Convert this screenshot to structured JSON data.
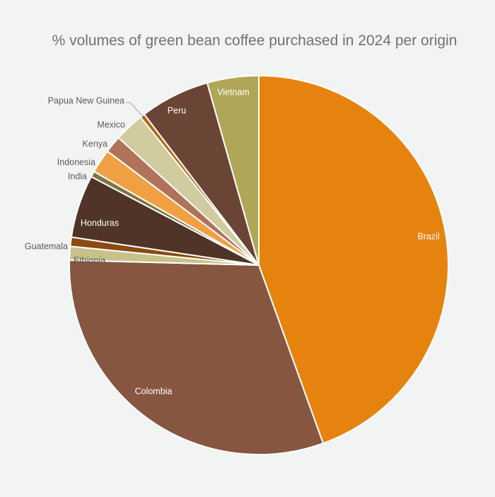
{
  "chart_data": {
    "type": "pie",
    "title": "% volumes of green bean coffee purchased in 2024 per origin",
    "start_angle_deg": 0,
    "direction": "clockwise",
    "slices": [
      {
        "label": "Brazil",
        "value": 45.6,
        "color": "#e6830f",
        "label_color": "#ffffff"
      },
      {
        "label": "Colombia",
        "value": 31.7,
        "color": "#865641",
        "label_color": "#ffffff"
      },
      {
        "label": "Ethiopia",
        "value": 1.2,
        "color": "#c9c18a",
        "label_color": "#5a5a5a"
      },
      {
        "label": "Guatemala",
        "value": 0.8,
        "color": "#8b4a10",
        "label_color": "#5a5a5a"
      },
      {
        "label": "Honduras",
        "value": 5.5,
        "color": "#4f3427",
        "label_color": "#ffffff"
      },
      {
        "label": "India",
        "value": 0.5,
        "color": "#7d7540",
        "label_color": "#5a5a5a"
      },
      {
        "label": "Indonesia",
        "value": 2.1,
        "color": "#f0a043",
        "label_color": "#5a5a5a"
      },
      {
        "label": "Kenya",
        "value": 1.5,
        "color": "#b0735a",
        "label_color": "#5a5a5a"
      },
      {
        "label": "Mexico",
        "value": 2.6,
        "color": "#d0cc9f",
        "label_color": "#5a5a5a"
      },
      {
        "label": "Papua New Guinea",
        "value": 0.4,
        "color": "#b6660f",
        "label_color": "#5a5a5a"
      },
      {
        "label": "Peru",
        "value": 6.1,
        "color": "#6a4535",
        "label_color": "#ffffff"
      },
      {
        "label": "Vietnam",
        "value": 4.5,
        "color": "#b0a657",
        "label_color": "#ffffff"
      }
    ]
  }
}
